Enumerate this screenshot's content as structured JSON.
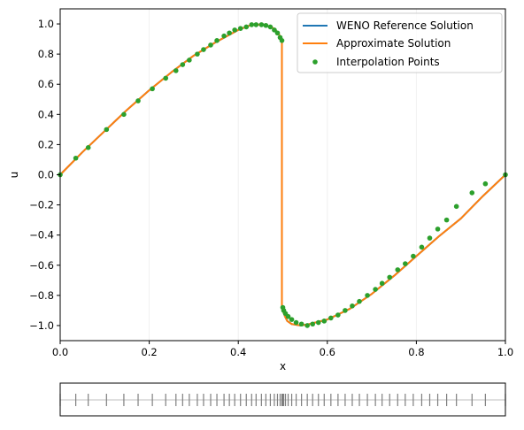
{
  "chart_data": [
    {
      "type": "line",
      "xlabel": "x",
      "ylabel": "u",
      "xlim": [
        0.0,
        1.0
      ],
      "ylim": [
        -1.1,
        1.1
      ],
      "xticks": [
        0.0,
        0.2,
        0.4,
        0.6,
        0.8,
        1.0
      ],
      "xtick_labels": [
        "0.0",
        "0.2",
        "0.4",
        "0.6",
        "0.8",
        "1.0"
      ],
      "yticks": [
        1.0,
        0.8,
        0.6,
        0.4,
        0.2,
        0.0,
        -0.2,
        -0.4,
        -0.6,
        -0.8,
        -1.0
      ],
      "ytick_labels": [
        "1.0",
        "0.8",
        "0.6",
        "0.4",
        "0.2",
        "0.0",
        "−0.2",
        "−0.4",
        "−0.6",
        "−0.8",
        "−1.0"
      ],
      "grid": "faint vertical lines at x ticks",
      "legend_position": "top-right",
      "colors": {
        "reference": "#1f77b4",
        "approximate": "#ff7f0e",
        "points": "#2ca02c",
        "grid": "#f0f0f0"
      },
      "series": [
        {
          "name": "WENO Reference Solution",
          "style": "line",
          "x": [
            0.0,
            0.05,
            0.1,
            0.15,
            0.2,
            0.25,
            0.3,
            0.35,
            0.4,
            0.43,
            0.46,
            0.48,
            0.49,
            0.495,
            0.498,
            0.498,
            0.5,
            0.505,
            0.51,
            0.52,
            0.54,
            0.56,
            0.6,
            0.65,
            0.7,
            0.75,
            0.8,
            0.85,
            0.9,
            0.95,
            1.0
          ],
          "y": [
            0.0,
            0.15,
            0.29,
            0.43,
            0.56,
            0.68,
            0.79,
            0.88,
            0.96,
            0.995,
            0.995,
            0.97,
            0.94,
            0.91,
            0.88,
            -0.88,
            -0.9,
            -0.94,
            -0.97,
            -0.99,
            -1.0,
            -0.99,
            -0.96,
            -0.89,
            -0.79,
            -0.67,
            -0.54,
            -0.41,
            -0.29,
            -0.14,
            0.0
          ]
        },
        {
          "name": "Approximate Solution",
          "style": "line",
          "x": [
            0.0,
            0.05,
            0.1,
            0.15,
            0.2,
            0.25,
            0.3,
            0.35,
            0.4,
            0.43,
            0.46,
            0.48,
            0.49,
            0.495,
            0.498,
            0.498,
            0.5,
            0.505,
            0.51,
            0.52,
            0.54,
            0.56,
            0.6,
            0.65,
            0.7,
            0.75,
            0.8,
            0.85,
            0.9,
            0.95,
            1.0
          ],
          "y": [
            0.0,
            0.15,
            0.29,
            0.43,
            0.56,
            0.68,
            0.79,
            0.88,
            0.96,
            0.995,
            0.995,
            0.97,
            0.94,
            0.91,
            0.88,
            -0.88,
            -0.9,
            -0.94,
            -0.97,
            -0.99,
            -1.0,
            -0.99,
            -0.96,
            -0.89,
            -0.79,
            -0.67,
            -0.54,
            -0.41,
            -0.29,
            -0.14,
            0.0
          ]
        },
        {
          "name": "Interpolation Points",
          "style": "markers",
          "x": [
            0.0,
            0.035,
            0.063,
            0.104,
            0.143,
            0.175,
            0.207,
            0.237,
            0.26,
            0.275,
            0.29,
            0.308,
            0.322,
            0.338,
            0.352,
            0.368,
            0.38,
            0.392,
            0.405,
            0.418,
            0.43,
            0.44,
            0.452,
            0.462,
            0.472,
            0.481,
            0.488,
            0.494,
            0.498,
            0.5,
            0.502,
            0.506,
            0.512,
            0.52,
            0.53,
            0.542,
            0.555,
            0.567,
            0.58,
            0.593,
            0.608,
            0.624,
            0.64,
            0.656,
            0.672,
            0.69,
            0.708,
            0.723,
            0.74,
            0.758,
            0.775,
            0.793,
            0.812,
            0.83,
            0.848,
            0.868,
            0.89,
            0.925,
            0.955,
            1.0
          ],
          "y": [
            0.0,
            0.11,
            0.18,
            0.3,
            0.4,
            0.49,
            0.57,
            0.64,
            0.69,
            0.73,
            0.76,
            0.8,
            0.83,
            0.86,
            0.89,
            0.92,
            0.94,
            0.96,
            0.97,
            0.98,
            0.995,
            0.995,
            0.995,
            0.99,
            0.98,
            0.96,
            0.94,
            0.91,
            0.89,
            -0.88,
            -0.9,
            -0.92,
            -0.94,
            -0.96,
            -0.98,
            -0.99,
            -1.0,
            -0.99,
            -0.98,
            -0.97,
            -0.95,
            -0.93,
            -0.9,
            -0.87,
            -0.84,
            -0.8,
            -0.76,
            -0.72,
            -0.68,
            -0.63,
            -0.59,
            -0.54,
            -0.48,
            -0.42,
            -0.36,
            -0.3,
            -0.21,
            -0.12,
            -0.06,
            0.0
          ]
        }
      ]
    },
    {
      "type": "scatter",
      "description_role": "point distribution strip",
      "xlim": [
        0.0,
        1.0
      ],
      "marker": "|",
      "colors": {
        "marks": "#7f7f7f",
        "baseline": "#bfbfbf"
      },
      "x": [
        0.0,
        0.035,
        0.063,
        0.104,
        0.143,
        0.175,
        0.207,
        0.237,
        0.26,
        0.275,
        0.29,
        0.308,
        0.322,
        0.338,
        0.352,
        0.368,
        0.38,
        0.392,
        0.405,
        0.418,
        0.43,
        0.44,
        0.452,
        0.462,
        0.472,
        0.481,
        0.488,
        0.494,
        0.498,
        0.5,
        0.502,
        0.506,
        0.512,
        0.52,
        0.53,
        0.542,
        0.555,
        0.567,
        0.58,
        0.593,
        0.608,
        0.624,
        0.64,
        0.656,
        0.672,
        0.69,
        0.708,
        0.723,
        0.74,
        0.758,
        0.775,
        0.793,
        0.812,
        0.83,
        0.848,
        0.868,
        0.89,
        0.925,
        0.955,
        1.0
      ]
    }
  ]
}
